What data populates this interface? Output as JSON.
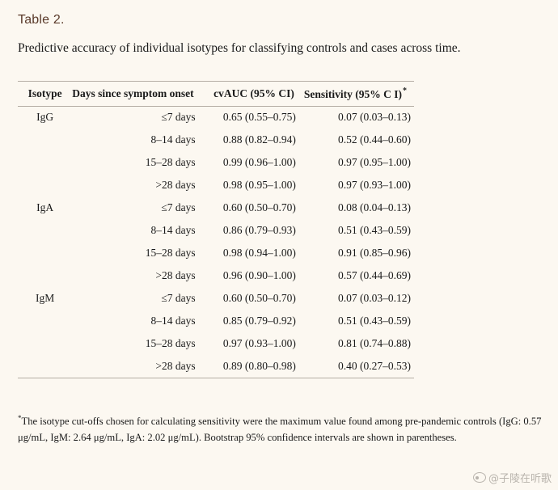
{
  "table_label": "Table 2.",
  "caption": "Predictive accuracy of individual isotypes for classifying controls and cases across time.",
  "columns": {
    "isotype": "Isotype",
    "days": "Days since symptom onset",
    "auc": "cvAUC (95% CI)",
    "sensitivity": "Sensitivity (95% C I)",
    "sensitivity_mark": "*"
  },
  "rows": [
    {
      "isotype": "IgG",
      "days": "≤7 days",
      "auc": "0.65 (0.55–0.75)",
      "sensitivity": "0.07 (0.03–0.13)"
    },
    {
      "isotype": "",
      "days": "8–14 days",
      "auc": "0.88 (0.82–0.94)",
      "sensitivity": "0.52 (0.44–0.60)"
    },
    {
      "isotype": "",
      "days": "15–28 days",
      "auc": "0.99 (0.96–1.00)",
      "sensitivity": "0.97 (0.95–1.00)"
    },
    {
      "isotype": "",
      "days": ">28 days",
      "auc": "0.98 (0.95–1.00)",
      "sensitivity": "0.97 (0.93–1.00)"
    },
    {
      "isotype": "IgA",
      "days": "≤7 days",
      "auc": "0.60 (0.50–0.70)",
      "sensitivity": "0.08 (0.04–0.13)"
    },
    {
      "isotype": "",
      "days": "8–14 days",
      "auc": "0.86 (0.79–0.93)",
      "sensitivity": "0.51 (0.43–0.59)"
    },
    {
      "isotype": "",
      "days": "15–28 days",
      "auc": "0.98 (0.94–1.00)",
      "sensitivity": "0.91 (0.85–0.96)"
    },
    {
      "isotype": "",
      "days": ">28 days",
      "auc": "0.96 (0.90–1.00)",
      "sensitivity": "0.57 (0.44–0.69)"
    },
    {
      "isotype": "IgM",
      "days": "≤7 days",
      "auc": "0.60 (0.50–0.70)",
      "sensitivity": "0.07 (0.03–0.12)"
    },
    {
      "isotype": "",
      "days": "8–14 days",
      "auc": "0.85 (0.79–0.92)",
      "sensitivity": "0.51 (0.43–0.59)"
    },
    {
      "isotype": "",
      "days": "15–28 days",
      "auc": "0.97 (0.93–1.00)",
      "sensitivity": "0.81 (0.74–0.88)"
    },
    {
      "isotype": "",
      "days": ">28 days",
      "auc": "0.89 (0.80–0.98)",
      "sensitivity": "0.40 (0.27–0.53)"
    }
  ],
  "footnote": {
    "mark": "*",
    "text": "The isotype cut-offs chosen for calculating sensitivity were the maximum value found among pre-pandemic controls (IgG: 0.57 μg/mL, IgM: 2.64 μg/mL, IgA: 2.02 μg/mL). Bootstrap 95% confidence intervals are shown in parentheses."
  },
  "watermark": {
    "text": "@子陵在听歌",
    "icon": "weibo-icon"
  },
  "colors": {
    "background": "#fcf8f1",
    "label": "#5a3a2a",
    "rule": "#b5aea5",
    "watermark": "#b9b4ad"
  }
}
